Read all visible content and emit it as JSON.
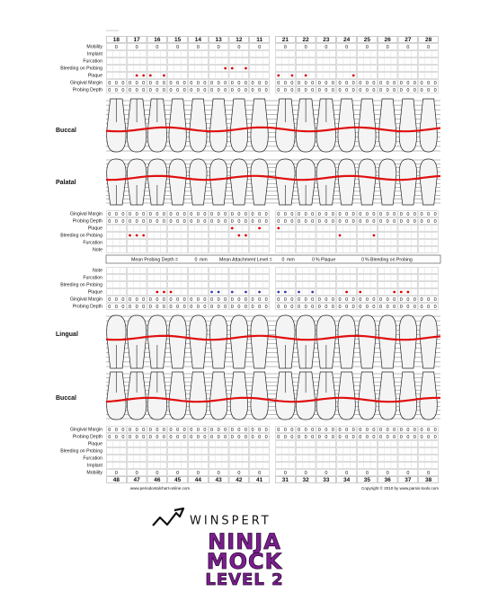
{
  "upper": {
    "teeth_numbers": [
      18,
      17,
      16,
      15,
      14,
      13,
      12,
      11,
      21,
      22,
      23,
      24,
      25,
      26,
      27,
      28
    ],
    "top_rows": [
      {
        "label": "Mobility",
        "values": [
          0,
          0,
          0,
          0,
          0,
          0,
          0,
          0,
          0,
          0,
          0,
          0,
          0,
          0,
          0,
          0
        ]
      },
      {
        "label": "Implant"
      },
      {
        "label": "Furcation"
      },
      {
        "label": "Bleeding on Probing"
      },
      {
        "label": "Plaque"
      },
      {
        "label": "Gingival Margin",
        "values": [
          [
            0,
            0,
            0
          ],
          [
            0,
            0,
            0
          ],
          [
            0,
            0,
            0
          ],
          [
            0,
            0,
            0
          ],
          [
            0,
            0,
            0
          ],
          [
            0,
            0,
            0
          ],
          [
            0,
            0,
            0
          ],
          [
            0,
            0,
            0
          ],
          [
            0,
            0,
            0
          ],
          [
            0,
            0,
            0
          ],
          [
            0,
            0,
            0
          ],
          [
            0,
            0,
            0
          ],
          [
            0,
            0,
            0
          ],
          [
            0,
            0,
            0
          ],
          [
            0,
            0,
            0
          ],
          [
            0,
            0,
            0
          ]
        ]
      },
      {
        "label": "Probing Depth",
        "values": [
          [
            0,
            0,
            0
          ],
          [
            0,
            0,
            0
          ],
          [
            0,
            0,
            0
          ],
          [
            0,
            0,
            0
          ],
          [
            0,
            0,
            0
          ],
          [
            0,
            0,
            0
          ],
          [
            0,
            0,
            0
          ],
          [
            0,
            0,
            0
          ],
          [
            0,
            0,
            0
          ],
          [
            0,
            0,
            0
          ],
          [
            0,
            0,
            0
          ],
          [
            0,
            0,
            0
          ],
          [
            0,
            0,
            0
          ],
          [
            0,
            0,
            0
          ],
          [
            0,
            0,
            0
          ],
          [
            0,
            0,
            0
          ]
        ]
      }
    ],
    "outer_label": "Buccal",
    "inner_label": "Palatal",
    "bottom_rows": [
      {
        "label": "Gingival Margin",
        "values": [
          [
            0,
            0,
            0
          ],
          [
            0,
            0,
            0
          ],
          [
            0,
            0,
            0
          ],
          [
            0,
            0,
            0
          ],
          [
            0,
            0,
            0
          ],
          [
            0,
            0,
            0
          ],
          [
            0,
            0,
            0
          ],
          [
            0,
            0,
            0
          ],
          [
            0,
            0,
            0
          ],
          [
            0,
            0,
            0
          ],
          [
            0,
            0,
            0
          ],
          [
            0,
            0,
            0
          ],
          [
            0,
            0,
            0
          ],
          [
            0,
            0,
            0
          ],
          [
            0,
            0,
            0
          ],
          [
            0,
            0,
            0
          ]
        ]
      },
      {
        "label": "Probing Depth",
        "values": [
          [
            0,
            0,
            0
          ],
          [
            0,
            0,
            0
          ],
          [
            0,
            0,
            0
          ],
          [
            0,
            0,
            0
          ],
          [
            0,
            0,
            0
          ],
          [
            0,
            0,
            0
          ],
          [
            0,
            0,
            0
          ],
          [
            0,
            0,
            0
          ],
          [
            0,
            0,
            0
          ],
          [
            0,
            0,
            0
          ],
          [
            0,
            0,
            0
          ],
          [
            0,
            0,
            0
          ],
          [
            0,
            0,
            0
          ],
          [
            0,
            0,
            0
          ],
          [
            0,
            0,
            0
          ],
          [
            0,
            0,
            0
          ]
        ]
      },
      {
        "label": "Plaque"
      },
      {
        "label": "Bleeding on Probing"
      },
      {
        "label": "Furcation"
      },
      {
        "label": "Note"
      }
    ]
  },
  "summary": {
    "mean_pd_label": "Mean Probing Depth =",
    "mean_pd": 0,
    "mean_pd_unit": "mm",
    "mean_al_label": "Mean Attachment Level =",
    "mean_al": 0,
    "mean_al_unit": "mm",
    "plaque": 0,
    "plaque_label": "% Plaque",
    "bop": 0,
    "bop_label": "% Bleeding on Probing"
  },
  "lower": {
    "top_rows": [
      {
        "label": "Note"
      },
      {
        "label": "Furcation"
      },
      {
        "label": "Bleeding on Probing"
      },
      {
        "label": "Plaque"
      },
      {
        "label": "Gingival Margin",
        "values": [
          [
            0,
            0,
            0
          ],
          [
            0,
            0,
            0
          ],
          [
            0,
            0,
            0
          ],
          [
            0,
            0,
            0
          ],
          [
            0,
            0,
            0
          ],
          [
            0,
            0,
            0
          ],
          [
            0,
            0,
            0
          ],
          [
            0,
            0,
            0
          ],
          [
            0,
            0,
            0
          ],
          [
            0,
            0,
            0
          ],
          [
            0,
            0,
            0
          ],
          [
            0,
            0,
            0
          ],
          [
            0,
            0,
            0
          ],
          [
            0,
            0,
            0
          ],
          [
            0,
            0,
            0
          ],
          [
            0,
            0,
            0
          ]
        ]
      },
      {
        "label": "Probing Depth",
        "values": [
          [
            0,
            0,
            0
          ],
          [
            0,
            0,
            0
          ],
          [
            0,
            0,
            0
          ],
          [
            0,
            0,
            0
          ],
          [
            0,
            0,
            0
          ],
          [
            0,
            0,
            0
          ],
          [
            0,
            0,
            0
          ],
          [
            0,
            0,
            0
          ],
          [
            0,
            0,
            0
          ],
          [
            0,
            0,
            0
          ],
          [
            0,
            0,
            0
          ],
          [
            0,
            0,
            0
          ],
          [
            0,
            0,
            0
          ],
          [
            0,
            0,
            0
          ],
          [
            0,
            0,
            0
          ],
          [
            0,
            0,
            0
          ]
        ]
      }
    ],
    "inner_label": "Lingual",
    "outer_label": "Buccal",
    "bottom_rows": [
      {
        "label": "Gingival Margin",
        "values": [
          [
            0,
            0,
            0
          ],
          [
            0,
            0,
            0
          ],
          [
            0,
            0,
            0
          ],
          [
            0,
            0,
            0
          ],
          [
            0,
            0,
            0
          ],
          [
            0,
            0,
            0
          ],
          [
            0,
            0,
            0
          ],
          [
            0,
            0,
            0
          ],
          [
            0,
            0,
            0
          ],
          [
            0,
            0,
            0
          ],
          [
            0,
            0,
            0
          ],
          [
            0,
            0,
            0
          ],
          [
            0,
            0,
            0
          ],
          [
            0,
            0,
            0
          ],
          [
            0,
            0,
            0
          ],
          [
            0,
            0,
            0
          ]
        ]
      },
      {
        "label": "Probing Depth",
        "values": [
          [
            0,
            0,
            0
          ],
          [
            0,
            0,
            0
          ],
          [
            0,
            0,
            0
          ],
          [
            0,
            0,
            0
          ],
          [
            0,
            0,
            0
          ],
          [
            0,
            0,
            0
          ],
          [
            0,
            0,
            0
          ],
          [
            0,
            0,
            0
          ],
          [
            0,
            0,
            0
          ],
          [
            0,
            0,
            0
          ],
          [
            0,
            0,
            0
          ],
          [
            0,
            0,
            0
          ],
          [
            0,
            0,
            0
          ],
          [
            0,
            0,
            0
          ],
          [
            0,
            0,
            0
          ],
          [
            0,
            0,
            0
          ]
        ]
      },
      {
        "label": "Plaque"
      },
      {
        "label": "Bleeding on Probing"
      },
      {
        "label": "Furcation"
      },
      {
        "label": "Implant"
      },
      {
        "label": "Mobility",
        "values": [
          0,
          0,
          0,
          0,
          0,
          0,
          0,
          0,
          0,
          0,
          0,
          0,
          0,
          0,
          0,
          0
        ]
      }
    ],
    "teeth_numbers": [
      48,
      47,
      46,
      45,
      44,
      43,
      42,
      41,
      31,
      32,
      33,
      34,
      35,
      36,
      37,
      38
    ]
  },
  "footer": {
    "left": "www.periodontalchart-online.com",
    "right": "Copyright © 2010 by www.parsis-tools.com"
  },
  "logo": {
    "brand": "WINSPERT",
    "line1": "NINJA",
    "line2": "MOCK",
    "line3": "LEVEL 2"
  }
}
